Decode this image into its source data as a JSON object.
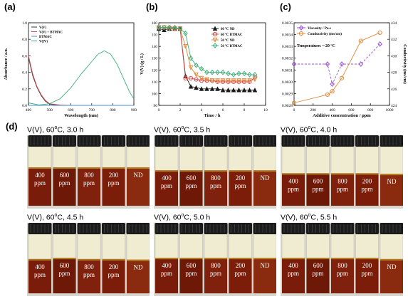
{
  "panels": {
    "a": "(a)",
    "b": "(b)",
    "c": "(c)",
    "d": "(d)"
  },
  "chart_data": [
    {
      "type": "line",
      "xlabel": "Wavelength (nm)",
      "ylabel": "Absorbance / a.u.",
      "xlim": [
        400,
        900
      ],
      "ylim": [
        0.0,
        1.0
      ],
      "xticks": [
        "400",
        "500",
        "600",
        "700",
        "800",
        "900"
      ],
      "yticks": [
        "0.0",
        "0.2",
        "0.4",
        "0.6",
        "0.8",
        "1.0"
      ],
      "legend": "top-left",
      "series": [
        {
          "name": "V(V)",
          "color": "#333333",
          "x": [
            400,
            420,
            440,
            460,
            480,
            500,
            550,
            600,
            900
          ],
          "y": [
            0.58,
            0.36,
            0.22,
            0.12,
            0.05,
            0.015,
            0.0,
            0.0,
            0.0
          ]
        },
        {
          "name": "V(V) + BTMAC",
          "color": "#d94a4a",
          "x": [
            400,
            420,
            440,
            460,
            480,
            500,
            550,
            600,
            900
          ],
          "y": [
            0.6,
            0.38,
            0.23,
            0.13,
            0.06,
            0.02,
            0.005,
            0.0,
            0.0
          ]
        },
        {
          "name": "BTMAC",
          "color": "#4a8fd9",
          "x": [
            400,
            900
          ],
          "y": [
            0.0,
            0.0
          ]
        },
        {
          "name": "V(IV)",
          "color": "#3fae7a",
          "x": [
            400,
            450,
            500,
            550,
            600,
            650,
            700,
            730,
            760,
            790,
            820,
            850,
            880,
            900
          ],
          "y": [
            0.03,
            0.005,
            0.02,
            0.08,
            0.21,
            0.38,
            0.53,
            0.62,
            0.66,
            0.62,
            0.5,
            0.33,
            0.16,
            0.08
          ]
        }
      ]
    },
    {
      "type": "line",
      "xlabel": "Time / h",
      "ylabel": "V(V) (g / L)",
      "xlim": [
        0,
        10
      ],
      "ylim": [
        90,
        160
      ],
      "xticks": [
        "0",
        "2",
        "4",
        "6",
        "8",
        "10"
      ],
      "yticks": [
        "90",
        "100",
        "110",
        "120",
        "130",
        "140",
        "150",
        "160"
      ],
      "legend": "top-right",
      "series": [
        {
          "name": "60 °C ND",
          "color": "#1a1a1a",
          "marker": "triangle-up",
          "x": [
            0,
            0.5,
            1,
            1.5,
            2,
            2.5,
            3,
            3.5,
            4,
            4.5,
            5,
            5.5,
            6,
            6.5,
            7,
            7.5,
            8,
            8.5,
            9
          ],
          "y": [
            155,
            154,
            155,
            155,
            155,
            115,
            106,
            105,
            104,
            104,
            104,
            104,
            103,
            103,
            103,
            103,
            103,
            103,
            103
          ]
        },
        {
          "name": "60 °C BTMAC",
          "color": "#d94a4a",
          "marker": "circle",
          "x": [
            0,
            0.5,
            1,
            1.5,
            2,
            2.5,
            3,
            3.5,
            4,
            4.5,
            5,
            5.5,
            6,
            6.5,
            7,
            7.5,
            8,
            8.5,
            9
          ],
          "y": [
            156,
            156,
            156,
            155,
            155,
            113,
            113,
            112,
            111,
            111,
            111,
            110,
            110,
            110,
            110,
            110,
            110,
            110,
            114
          ]
        },
        {
          "name": "50 °C ND",
          "color": "#e08a3c",
          "marker": "triangle-down",
          "x": [
            0,
            0.5,
            1,
            1.5,
            2,
            2.5,
            3,
            3.5,
            4,
            4.5,
            5,
            5.5,
            6,
            6.5,
            7,
            7.5,
            8,
            8.5,
            9
          ],
          "y": [
            156,
            156,
            155,
            155,
            155,
            140,
            122,
            116,
            113,
            112,
            111,
            111,
            111,
            111,
            111,
            111,
            111,
            111,
            112
          ]
        },
        {
          "name": "50 °C BTMAC",
          "color": "#3fae7a",
          "marker": "diamond",
          "x": [
            0,
            0.5,
            1,
            1.5,
            2,
            2.5,
            3,
            3.5,
            4,
            4.5,
            5,
            5.5,
            6,
            6.5,
            7,
            7.5,
            8,
            8.5,
            9
          ],
          "y": [
            156,
            156,
            156,
            156,
            155,
            151,
            130,
            124,
            121,
            118,
            118,
            118,
            118,
            117,
            116,
            117,
            117,
            116,
            116
          ]
        }
      ]
    },
    {
      "type": "line",
      "xlabel": "Additive concentration / ppm",
      "ylabel": "Viscosity / Pa.s",
      "y2label": "Conductivity (ms/cm)",
      "xlim": [
        0,
        1000
      ],
      "ylim": [
        0.0028,
        0.0035
      ],
      "y2lim": [
        424,
        434
      ],
      "xticks": [
        "0",
        "200",
        "400",
        "600",
        "800",
        "1000"
      ],
      "yticks": [
        "0.0028",
        "0.0029",
        "0.0030",
        "0.0031",
        "0.0032",
        "0.0033",
        "0.0034",
        "0.0035"
      ],
      "y2ticks": [
        "424",
        "426",
        "428",
        "430",
        "432",
        "434"
      ],
      "annotation": "Temperature: ~ 20 °C",
      "legend": "top-left",
      "series": [
        {
          "name": "Viscosity / Pa.s",
          "axis": "left",
          "color": "#9b4fd9",
          "marker": "diamond",
          "x": [
            0,
            350,
            400,
            500,
            700,
            900
          ],
          "y": [
            0.00315,
            0.00315,
            0.00298,
            0.00315,
            0.00315,
            0.00332
          ]
        },
        {
          "name": "Conductivity (ms/cm)",
          "axis": "right",
          "color": "#e08a3c",
          "marker": "circle",
          "x": [
            0,
            350,
            400,
            500,
            700,
            900
          ],
          "y": [
            424.3,
            425.3,
            425.7,
            427.3,
            431.8,
            432.8
          ]
        }
      ]
    }
  ],
  "photos": [
    {
      "title_prefix": "V(V), 60",
      "title_sup": "o",
      "title_suffix": "C, 3.0 h",
      "labels": [
        [
          "400",
          "ppm"
        ],
        [
          "600",
          "ppm"
        ],
        [
          "800",
          "ppm"
        ],
        [
          "200",
          "ppm"
        ],
        [
          "ND",
          ""
        ]
      ]
    },
    {
      "title_prefix": "V(V), 60",
      "title_sup": "o",
      "title_suffix": "C, 3.5 h",
      "labels": [
        [
          "400",
          "ppm"
        ],
        [
          "600",
          "ppm"
        ],
        [
          "800",
          "ppm"
        ],
        [
          "200",
          "ppm"
        ],
        [
          "ND",
          ""
        ]
      ]
    },
    {
      "title_prefix": "V(V), 60",
      "title_sup": "o",
      "title_suffix": "C, 4.0 h",
      "labels": [
        [
          "400",
          "ppm"
        ],
        [
          "600",
          "ppm"
        ],
        [
          "800",
          "ppm"
        ],
        [
          "200",
          "ppm"
        ],
        [
          "ND",
          ""
        ]
      ]
    },
    {
      "title_prefix": "V(V), 60",
      "title_sup": "o",
      "title_suffix": "C, 4.5 h",
      "labels": [
        [
          "400",
          "ppm"
        ],
        [
          "600",
          "ppm"
        ],
        [
          "800",
          "ppm"
        ],
        [
          "200",
          "ppm"
        ],
        [
          "ND",
          ""
        ]
      ]
    },
    {
      "title_prefix": "V(V), 60",
      "title_sup": "o",
      "title_suffix": "C, 5.0 h",
      "labels": [
        [
          "400",
          "ppm"
        ],
        [
          "600",
          "ppm"
        ],
        [
          "800",
          "ppm"
        ],
        [
          "200",
          "ppm"
        ],
        [
          "ND",
          ""
        ]
      ]
    },
    {
      "title_prefix": "V(V), 60",
      "title_sup": "o",
      "title_suffix": "C, 5.5 h",
      "labels": [
        [
          "400",
          "ppm"
        ],
        [
          "600",
          "ppm"
        ],
        [
          "800",
          "ppm"
        ],
        [
          "200",
          "ppm"
        ],
        [
          "ND",
          ""
        ]
      ]
    }
  ]
}
